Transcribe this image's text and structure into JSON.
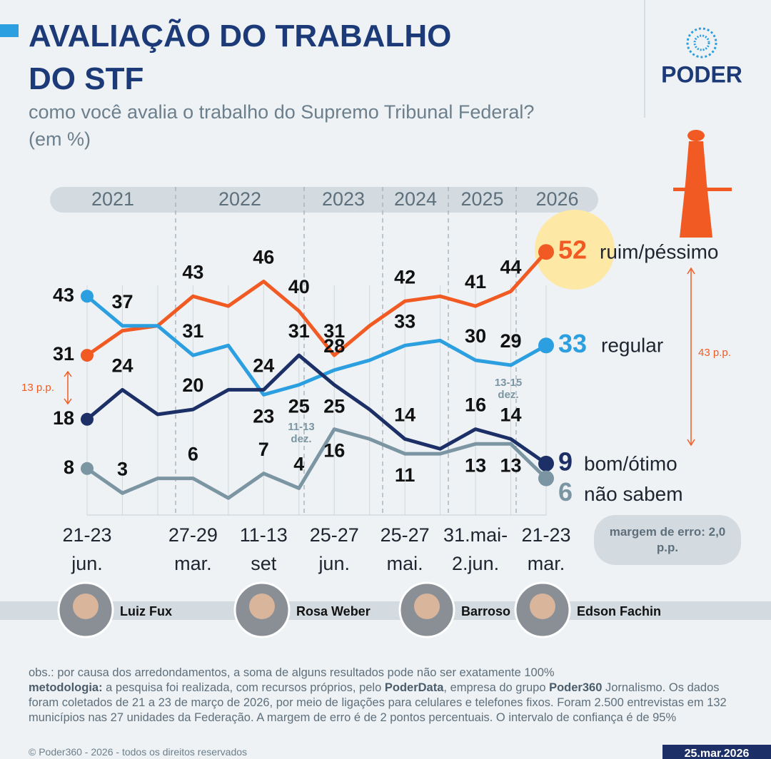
{
  "header": {
    "title_line1": "AVALIAÇÃO DO TRABALHO",
    "title_line2": "DO STF",
    "subtitle": "como você avalia o trabalho do Supremo Tribunal Federal?",
    "unit": "(em %)",
    "logo": "PODER"
  },
  "chart_data": {
    "type": "line",
    "years": [
      "2021",
      "2022",
      "2023",
      "2024",
      "2025",
      "2026"
    ],
    "categories": [
      "21-23 jun.",
      null,
      null,
      "27-29 mar.",
      null,
      "11-13 set",
      null,
      "25-27 jun.",
      null,
      "25-27 mai.",
      null,
      "31.mai-2.jun.",
      null,
      "21-23 mar."
    ],
    "ylim": [
      0,
      65
    ],
    "series": [
      {
        "name": "ruim/péssimo",
        "color": "#f15a22",
        "values": [
          31,
          36,
          37,
          43,
          41,
          46,
          40,
          31,
          37,
          42,
          43,
          41,
          44,
          52
        ],
        "value_labels": [
          "31",
          null,
          null,
          "43",
          null,
          "46",
          "40",
          "31",
          null,
          "42",
          null,
          "41",
          "44",
          "52"
        ]
      },
      {
        "name": "regular",
        "color": "#2c9fe0",
        "values": [
          43,
          37,
          37,
          31,
          33,
          23,
          25,
          28,
          30,
          33,
          34,
          30,
          29,
          33
        ],
        "value_labels": [
          "43",
          "37",
          null,
          "31",
          null,
          "23",
          "25",
          "28",
          null,
          "33",
          null,
          "30",
          "29",
          "33"
        ]
      },
      {
        "name": "bom/ótimo",
        "color": "#1c2f66",
        "values": [
          18,
          24,
          19,
          20,
          24,
          24,
          31,
          25,
          20,
          14,
          12,
          16,
          14,
          9
        ],
        "value_labels": [
          "18",
          "24",
          null,
          "20",
          null,
          "24",
          "31",
          "25",
          null,
          "14",
          null,
          "16",
          "14",
          "9"
        ]
      },
      {
        "name": "não sabem",
        "color": "#7b95a3",
        "values": [
          8,
          3,
          6,
          6,
          2,
          7,
          4,
          16,
          14,
          11,
          11,
          13,
          13,
          6
        ],
        "value_labels": [
          "8",
          "3",
          null,
          "6",
          null,
          "7",
          "4",
          "16",
          null,
          "11",
          null,
          "13",
          "13",
          "6"
        ]
      }
    ],
    "annotations": {
      "gap_2021": "13 p.p.",
      "gap_2026": "43 p.p.",
      "date_2022": "11-13 dez.",
      "date_2025": "13-15 dez.",
      "margin": "margem de erro: 2,0 p.p."
    }
  },
  "presidents": [
    "Luiz Fux",
    "Rosa Weber",
    "Barroso",
    "Edson Fachin"
  ],
  "footer": {
    "obs": "obs.: por causa dos arredondamentos, a soma de alguns resultados pode não ser exatamente 100%",
    "metodologia": [
      "metodologia:",
      " a pesquisa foi realizada, com recursos próprios, pelo ",
      "PoderData",
      ", empresa do grupo ",
      "Poder360",
      " Jornalismo. Os dados foram coletados de 21 a 23 de março de 2026, por meio de ligações para celulares e telefones fixos. Foram 2.500 entrevistas em 132 municípios nas 27 unidades da Federação. A margem de erro é de 2 pontos percentuais. O intervalo de confiança é de 95%"
    ],
    "copyright": "© Poder360 - 2026 - todos os direitos reservados",
    "date": "25.mar.2026"
  }
}
